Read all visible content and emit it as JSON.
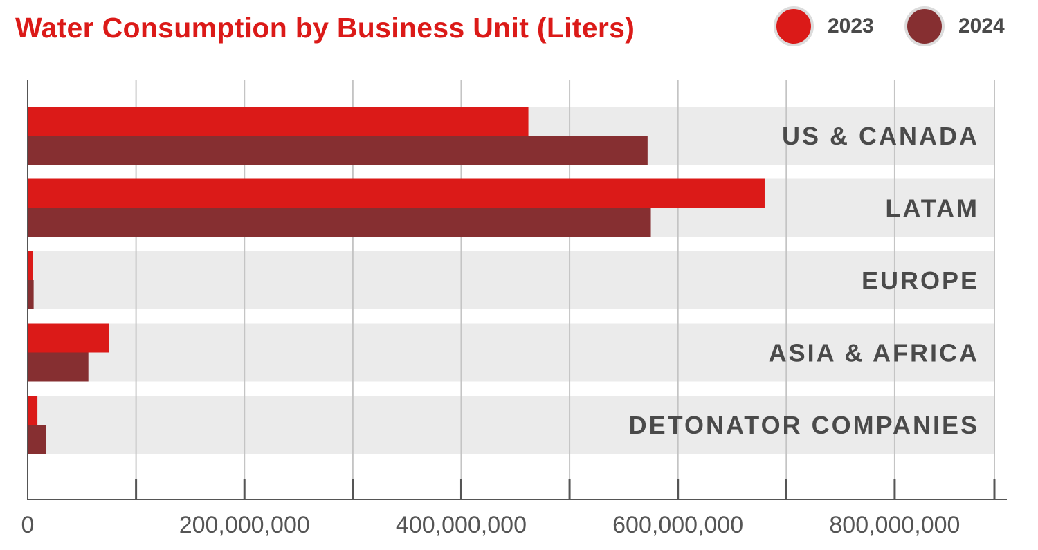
{
  "chart_data": {
    "type": "bar",
    "orientation": "horizontal",
    "title": "Water Consumption by Business Unit (Liters)",
    "categories": [
      "US & CANADA",
      "LATAM",
      "EUROPE",
      "ASIA & AFRICA",
      "DETONATOR COMPANIES"
    ],
    "series": [
      {
        "name": "2023",
        "color": "#db1a18",
        "values": [
          462000000,
          680000000,
          5000000,
          75000000,
          9000000
        ]
      },
      {
        "name": "2024",
        "color": "#862f31",
        "values": [
          572000000,
          575000000,
          5500000,
          56000000,
          17000000
        ]
      }
    ],
    "x_ticks": [
      0,
      200000000,
      400000000,
      600000000,
      800000000
    ],
    "x_tick_labels": [
      "0",
      "200,000,000",
      "400,000,000",
      "600,000,000",
      "800,000,000"
    ],
    "xlim": [
      0,
      892000000
    ],
    "grid": true,
    "legend_position": "top-right",
    "colors": {
      "title": "#db1a18",
      "band": "#ebebeb",
      "grid": "#c4c4c4",
      "axis": "#555555",
      "category_label": "#4a4a4a",
      "tick_label": "#555555"
    }
  }
}
